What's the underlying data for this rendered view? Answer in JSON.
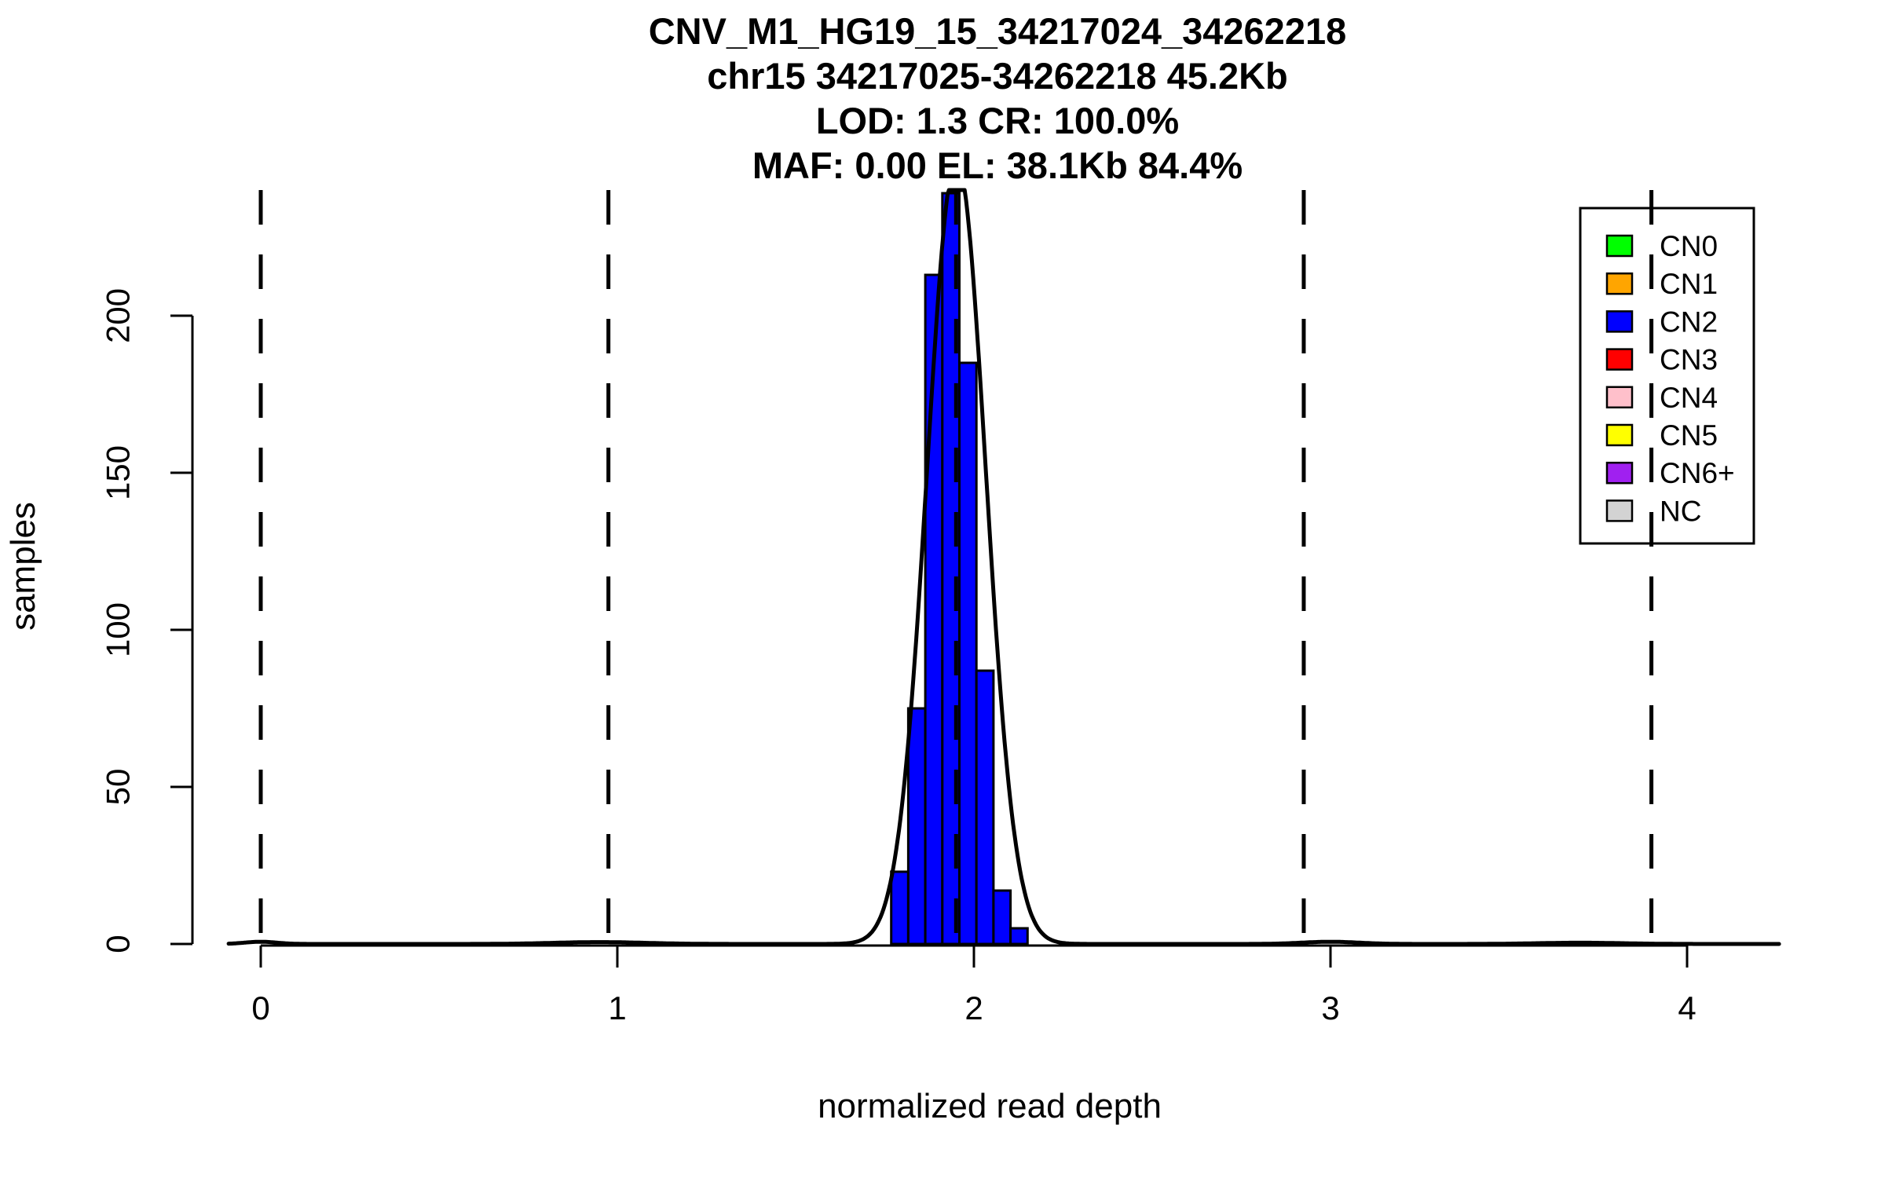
{
  "chart_data": {
    "type": "bar",
    "subtype": "histogram-with-density-curve",
    "title_lines": [
      "CNV_M1_HG19_15_34217024_34262218",
      "chr15 34217025-34262218 45.2Kb",
      "LOD: 1.3 CR: 100.0%",
      "MAF: 0.00 EL: 38.1Kb 84.4%"
    ],
    "xlabel": "normalized read depth",
    "ylabel": "samples",
    "x_ticks": [
      0,
      1,
      2,
      3,
      4
    ],
    "y_ticks": [
      0,
      50,
      100,
      150,
      200
    ],
    "xlim": [
      -0.09,
      4.26
    ],
    "ylim": [
      0,
      240
    ],
    "grid": false,
    "legend_position": "top-right",
    "dashed_guides_x": [
      0,
      0.975,
      1.95,
      2.925,
      3.9
    ],
    "histogram": {
      "series_label": "CN2",
      "fill_color": "#0000FF",
      "edge_color": "#000000",
      "bin_start": 1.768,
      "bin_width": 0.0478,
      "counts": [
        23,
        75,
        213,
        239,
        185,
        87,
        17,
        5
      ]
    },
    "density_curve": {
      "color": "#000000",
      "peak_x": 1.951,
      "peak_height": 250,
      "sigma": 0.082,
      "clip_at": 240,
      "baseline_bumps": [
        {
          "x": 0.0,
          "height": 0.7,
          "sigma": 0.045
        },
        {
          "x": 0.95,
          "height": 0.6,
          "sigma": 0.13
        },
        {
          "x": 3.0,
          "height": 0.7,
          "sigma": 0.08
        },
        {
          "x": 3.7,
          "height": 0.4,
          "sigma": 0.12
        }
      ]
    },
    "legend": {
      "entries": [
        {
          "label": "CN0",
          "color": "#00FF00"
        },
        {
          "label": "CN1",
          "color": "#FFA500"
        },
        {
          "label": "CN2",
          "color": "#0000FF"
        },
        {
          "label": "CN3",
          "color": "#FF0000"
        },
        {
          "label": "CN4",
          "color": "#FFC0CB"
        },
        {
          "label": "CN5",
          "color": "#FFFF00"
        },
        {
          "label": "CN6+",
          "color": "#A020F0"
        },
        {
          "label": "NC",
          "color": "#D3D3D3"
        }
      ]
    },
    "colors": {
      "bar_blue": "#0000FF",
      "line_black": "#000000",
      "background": "#FFFFFF"
    }
  }
}
